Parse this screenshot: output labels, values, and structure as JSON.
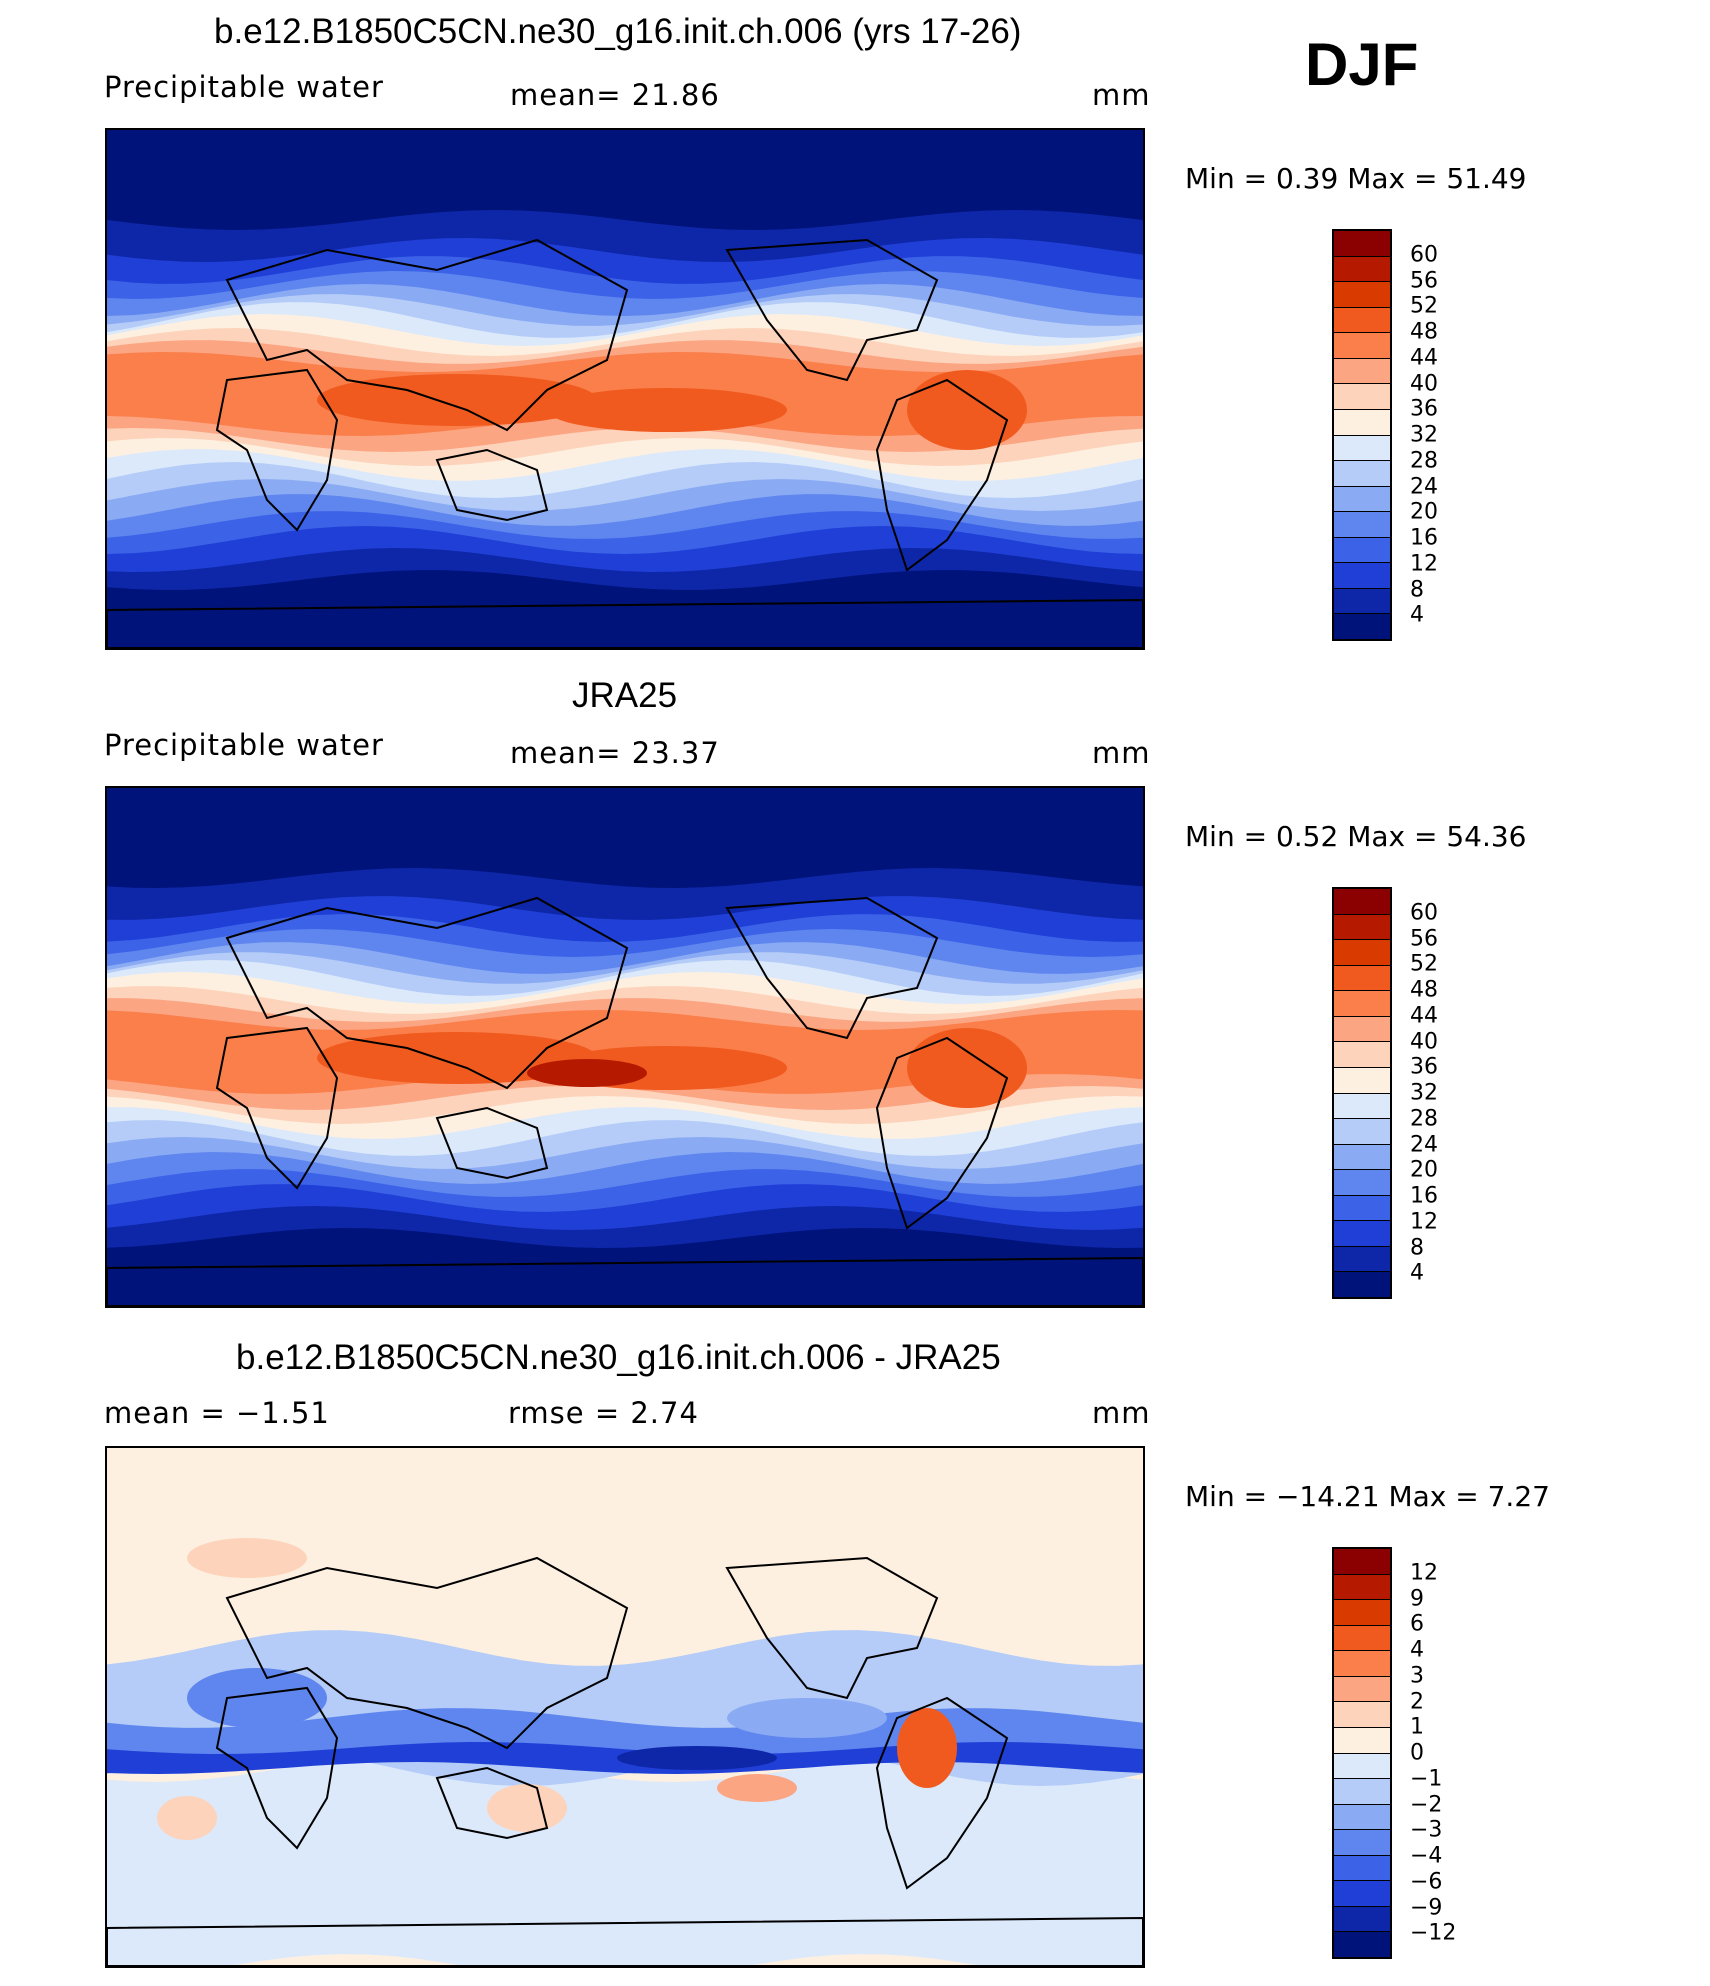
{
  "season": "DJF",
  "panels": [
    {
      "title": "b.e12.B1850C5CN.ne30_g16.init.ch.006 (yrs 17-26)",
      "variable": "Precipitable  water",
      "stat": "mean=   21.86",
      "units": "mm",
      "minmax": "Min =     0.39  Max =    51.49",
      "kind": "field",
      "colorbar": {
        "levels": [
          "60",
          "56",
          "52",
          "48",
          "44",
          "40",
          "36",
          "32",
          "28",
          "24",
          "20",
          "16",
          "12",
          "8",
          "4"
        ],
        "colors": [
          "#8b0000",
          "#b51a00",
          "#d93a00",
          "#f05a1e",
          "#fa7f4b",
          "#fca583",
          "#fdd3bb",
          "#fdf0e0",
          "#dbe9fb",
          "#b4ccf7",
          "#8aaaf3",
          "#5f86ee",
          "#3c62e8",
          "#1f3fd6",
          "#0e26a8",
          "#00137a"
        ]
      }
    },
    {
      "title": "JRA25",
      "variable": "Precipitable  water",
      "stat": "mean=   23.37",
      "units": "mm",
      "minmax": "Min =     0.52  Max =    54.36",
      "kind": "field",
      "colorbar": {
        "levels": [
          "60",
          "56",
          "52",
          "48",
          "44",
          "40",
          "36",
          "32",
          "28",
          "24",
          "20",
          "16",
          "12",
          "8",
          "4"
        ],
        "colors": [
          "#8b0000",
          "#b51a00",
          "#d93a00",
          "#f05a1e",
          "#fa7f4b",
          "#fca583",
          "#fdd3bb",
          "#fdf0e0",
          "#dbe9fb",
          "#b4ccf7",
          "#8aaaf3",
          "#5f86ee",
          "#3c62e8",
          "#1f3fd6",
          "#0e26a8",
          "#00137a"
        ]
      }
    },
    {
      "title": "b.e12.B1850C5CN.ne30_g16.init.ch.006 - JRA25",
      "variable": "mean =    −1.51",
      "stat": "rmse =      2.74",
      "units": "mm",
      "minmax": "Min =  −14.21  Max =      7.27",
      "kind": "diff",
      "colorbar": {
        "levels": [
          "12",
          "9",
          "6",
          "4",
          "3",
          "2",
          "1",
          "0",
          "−1",
          "−2",
          "−3",
          "−4",
          "−6",
          "−9",
          "−12"
        ],
        "colors": [
          "#8b0000",
          "#b51a00",
          "#d93a00",
          "#f05a1e",
          "#fa7f4b",
          "#fca583",
          "#fdd3bb",
          "#fdf0e0",
          "#dbe9fb",
          "#b4ccf7",
          "#8aaaf3",
          "#5f86ee",
          "#3c62e8",
          "#1f3fd6",
          "#0e26a8",
          "#00137a"
        ]
      }
    }
  ]
}
